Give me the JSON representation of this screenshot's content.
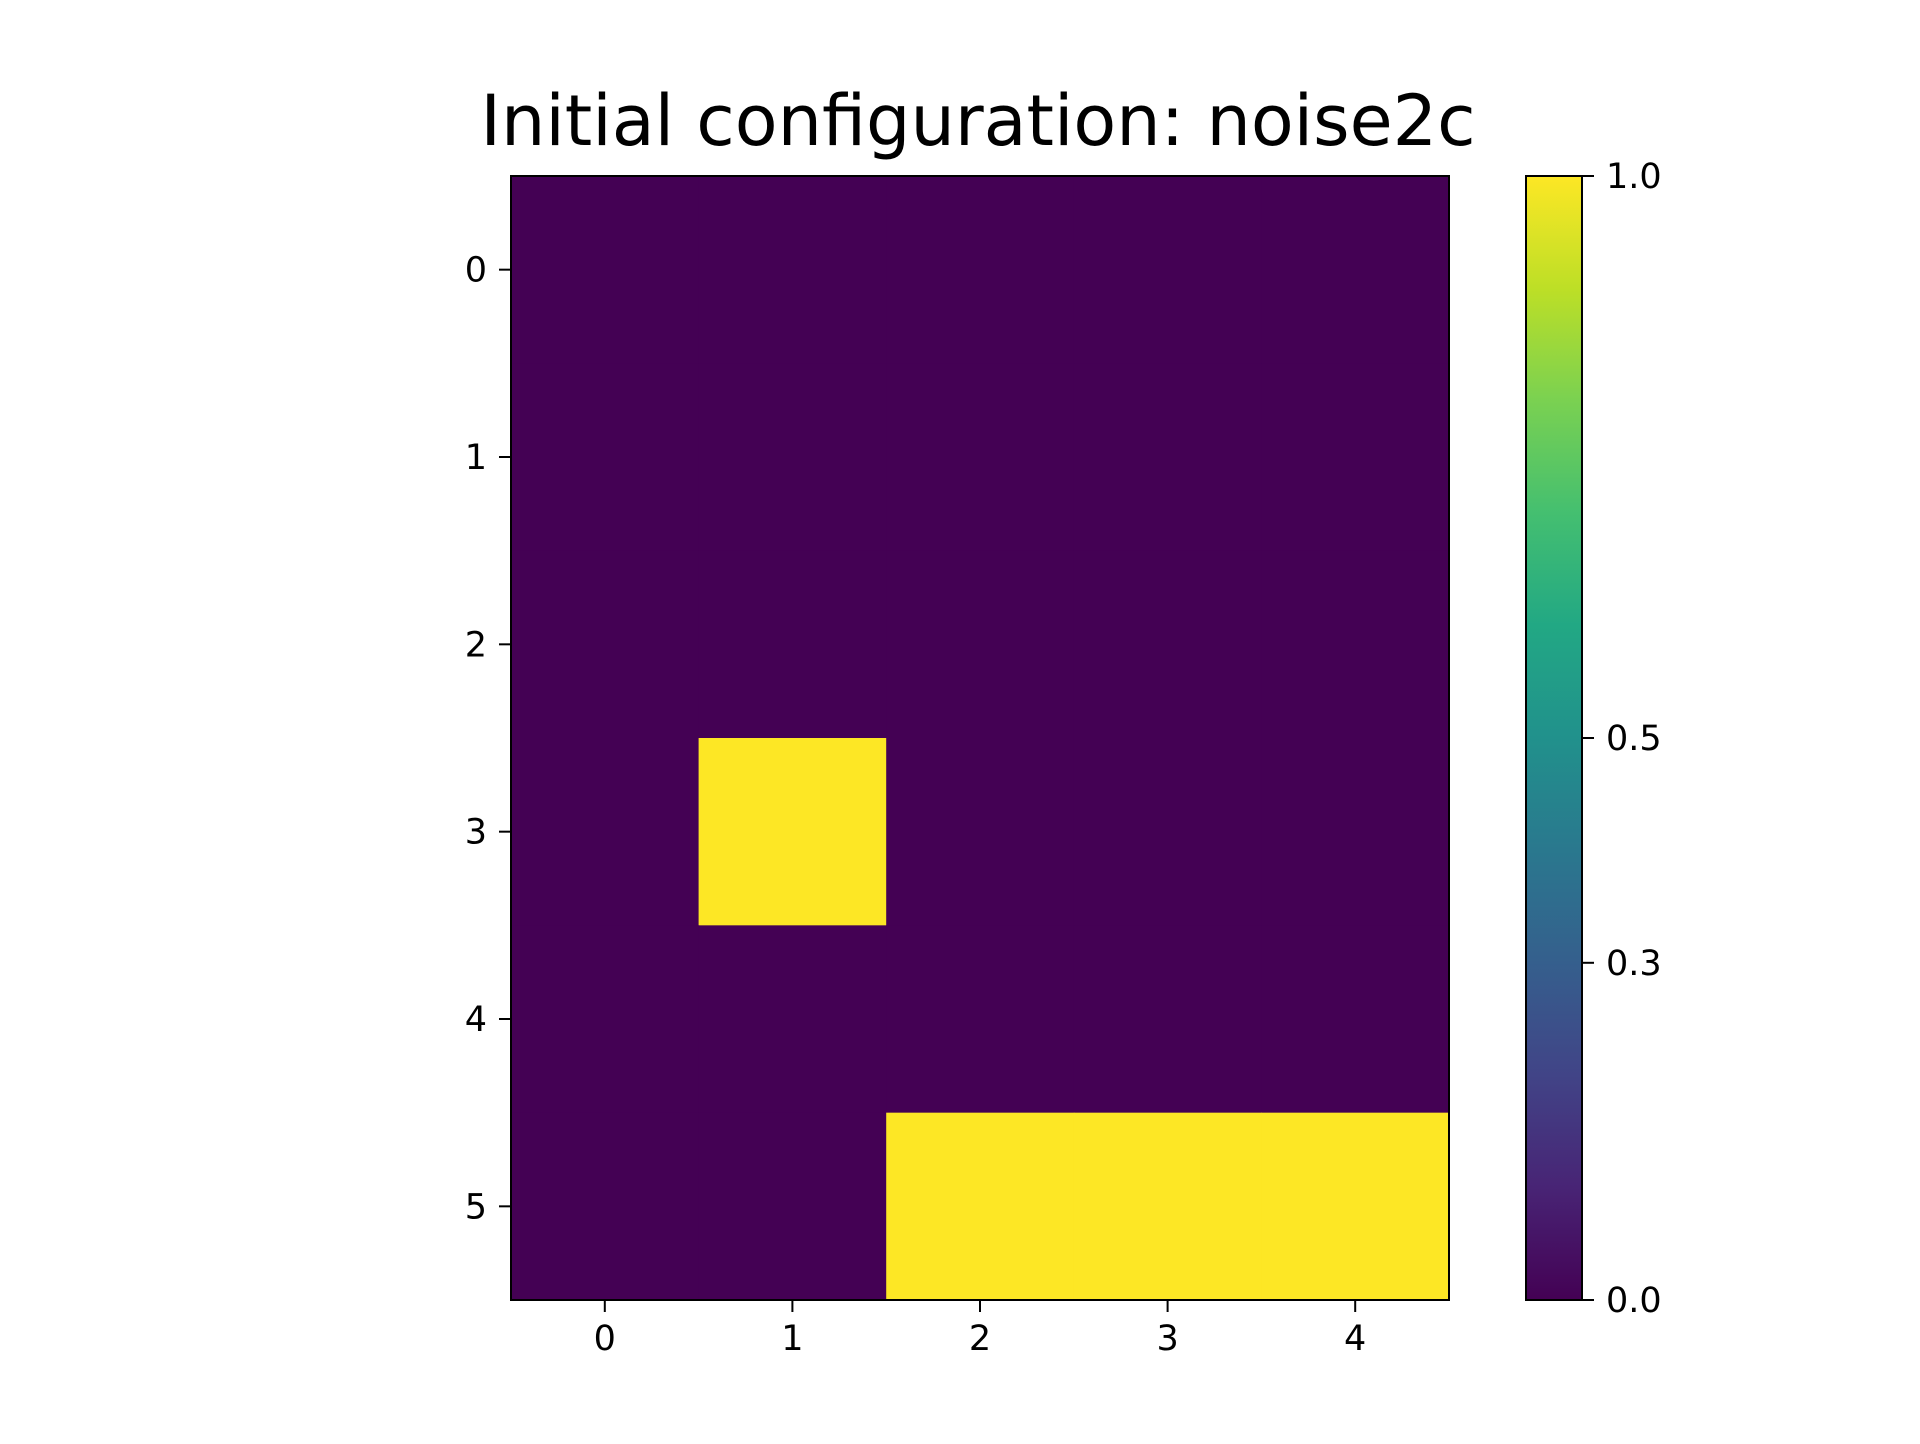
{
  "chart_data": {
    "type": "heatmap",
    "title": "Initial configuration: noise2c",
    "xlabel": "",
    "ylabel": "",
    "x_ticks": [
      "0",
      "1",
      "2",
      "3",
      "4"
    ],
    "y_ticks": [
      "0",
      "1",
      "2",
      "3",
      "4",
      "5"
    ],
    "values": [
      [
        0,
        0,
        0,
        0,
        0
      ],
      [
        0,
        0,
        0,
        0,
        0
      ],
      [
        0,
        0,
        0,
        0,
        0
      ],
      [
        0,
        1,
        0,
        0,
        0
      ],
      [
        0,
        0,
        0,
        0,
        0
      ],
      [
        0,
        0,
        1,
        1,
        1
      ]
    ],
    "colorbar": {
      "range": [
        0.0,
        1.0
      ],
      "ticks": [
        0.0,
        0.3,
        0.5,
        1.0
      ],
      "tick_labels": [
        "0.0",
        "0.3",
        "0.5",
        "1.0"
      ],
      "colormap": "viridis"
    },
    "grid": false,
    "colors": {
      "low": "#440154",
      "high": "#fde725"
    }
  }
}
